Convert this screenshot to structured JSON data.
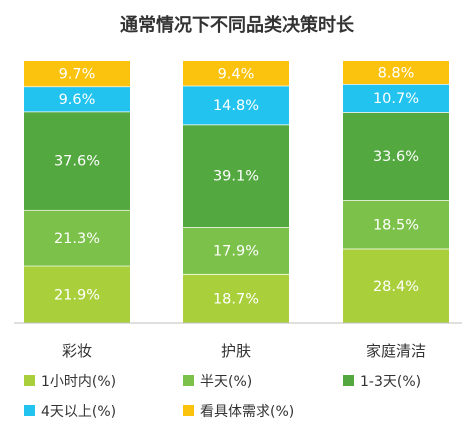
{
  "chart_data": {
    "type": "bar",
    "stacked": true,
    "percent_stacked": true,
    "title": "通常情况下不同品类决策时长",
    "xlabel": "",
    "ylabel": "",
    "categories": [
      "彩妆",
      "护肤",
      "家庭清洁"
    ],
    "series": [
      {
        "name": "1小时内(%)",
        "color": "#a9cf3b",
        "values": [
          21.9,
          18.7,
          28.4
        ],
        "labels": [
          "21.9%",
          "18.7%",
          "28.4%"
        ]
      },
      {
        "name": "半天(%)",
        "color": "#7cc24a",
        "values": [
          21.3,
          17.9,
          18.5
        ],
        "labels": [
          "21.3%",
          "17.9%",
          "18.5%"
        ]
      },
      {
        "name": "1-3天(%)",
        "color": "#53a83f",
        "values": [
          37.6,
          39.1,
          33.6
        ],
        "labels": [
          "37.6%",
          "39.1%",
          "33.6%"
        ]
      },
      {
        "name": "4天以上(%)",
        "color": "#22c3ee",
        "values": [
          9.6,
          14.8,
          10.7
        ],
        "labels": [
          "9.6%",
          "14.8%",
          "10.7%"
        ]
      },
      {
        "name": "看具体需求(%)",
        "color": "#fbc20e",
        "values": [
          9.7,
          9.4,
          8.8
        ],
        "labels": [
          "9.7%",
          "9.4%",
          "8.8%"
        ]
      }
    ],
    "legend_position": "bottom",
    "grid": false
  }
}
